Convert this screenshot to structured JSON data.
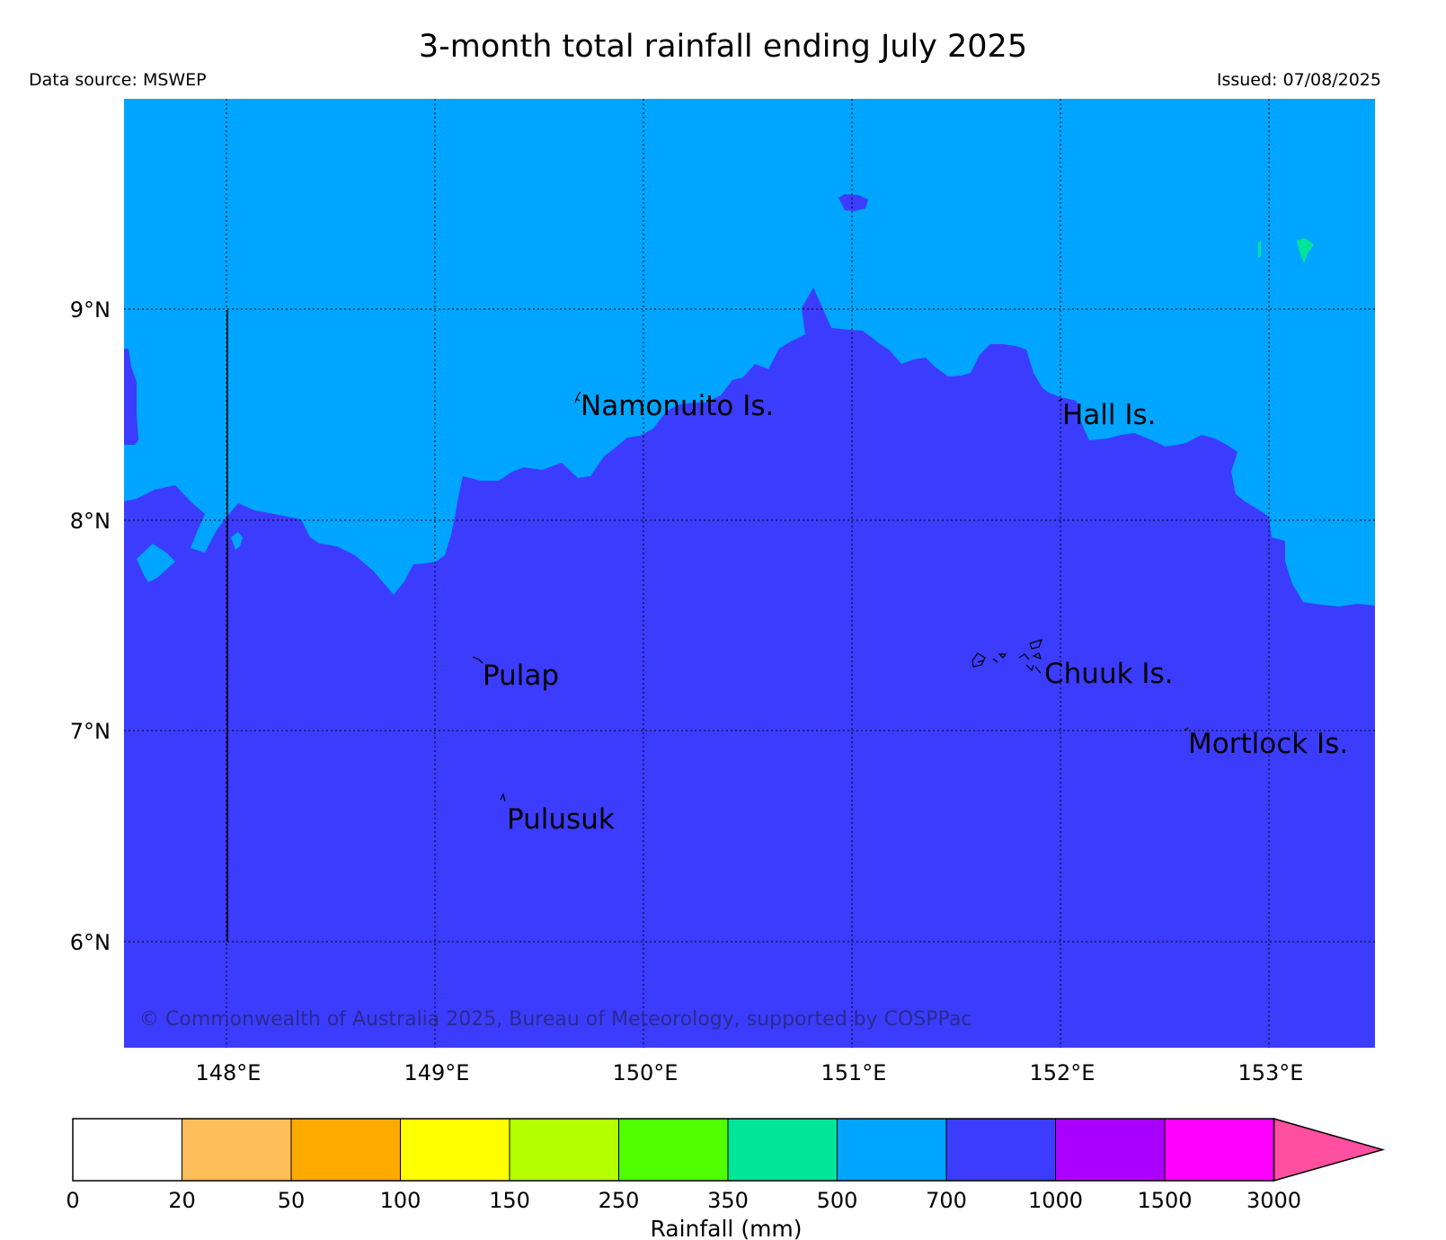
{
  "title": "3-month total rainfall ending July 2025",
  "data_source": "Data source: MSWEP",
  "issued": "Issued: 07/08/2025",
  "copyright": "© Commonwealth of Australia 2025, Bureau of Meteorology, supported by COSPPac",
  "map": {
    "lon_labels": [
      "148°E",
      "149°E",
      "150°E",
      "151°E",
      "152°E",
      "153°E"
    ],
    "lat_labels": [
      "9°N",
      "8°N",
      "7°N",
      "6°N"
    ],
    "places": [
      {
        "name": "Namonuito Is."
      },
      {
        "name": "Hall Is."
      },
      {
        "name": "Pulap"
      },
      {
        "name": "Chuuk Is."
      },
      {
        "name": "Mortlock Is."
      },
      {
        "name": "Pulusuk"
      }
    ],
    "colors": {
      "band_500_700": "#00a5ff",
      "band_700_1000": "#3c3cff",
      "band_350_500": "#00e699"
    }
  },
  "legend": {
    "title": "Rainfall (mm)",
    "ticks": [
      "0",
      "20",
      "50",
      "100",
      "150",
      "250",
      "350",
      "500",
      "700",
      "1000",
      "1500",
      "3000"
    ],
    "colors": [
      "#ffffff",
      "#ffbe5a",
      "#ffaa00",
      "#ffff00",
      "#b4ff00",
      "#50ff00",
      "#00e699",
      "#00a5ff",
      "#3c3cff",
      "#aa00ff",
      "#ff00ff"
    ],
    "extend_color": "#ff4fa0"
  }
}
